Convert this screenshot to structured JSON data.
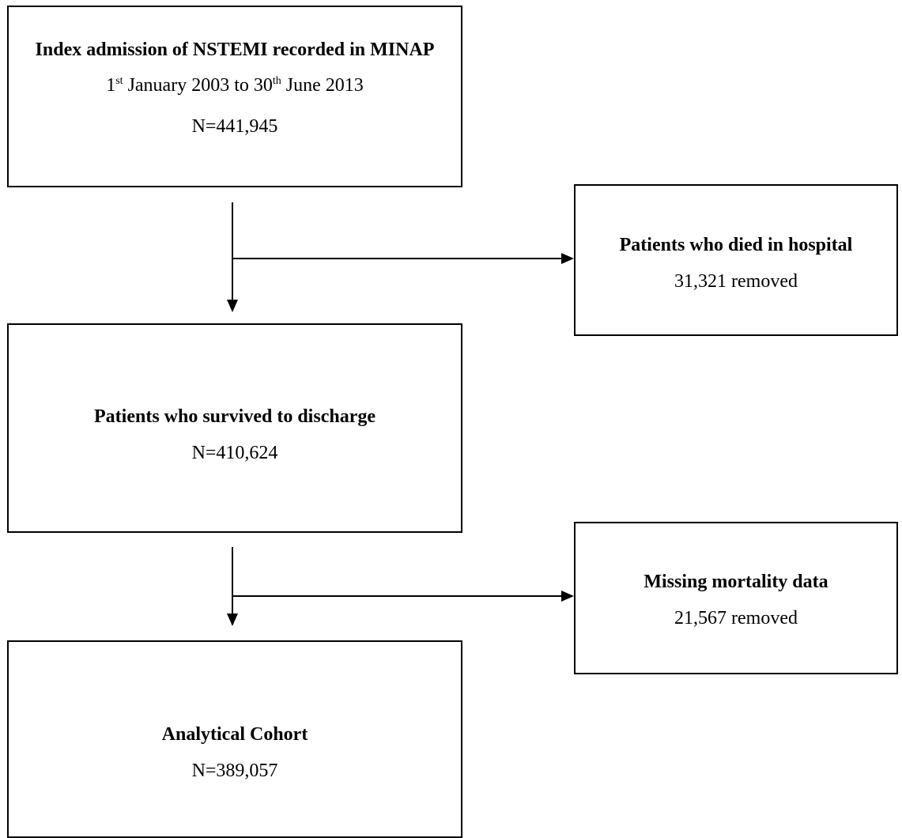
{
  "boxes": {
    "index_admission": {
      "title": "Index admission of NSTEMI recorded in MINAP",
      "date_part1": "1",
      "date_sup1": "st",
      "date_part2": " January 2003 to 30",
      "date_sup2": "th",
      "date_part3": " June 2013",
      "count": "N=441,945"
    },
    "died_in_hospital": {
      "title": "Patients who died in hospital",
      "detail": "31,321 removed"
    },
    "survived_to_discharge": {
      "title": "Patients who survived to discharge",
      "count": "N=410,624"
    },
    "missing_mortality": {
      "title": "Missing mortality data",
      "detail": "21,567 removed"
    },
    "analytical_cohort": {
      "title": "Analytical Cohort",
      "count": "N=389,057"
    }
  },
  "colors": {
    "line": "#000000",
    "background": "#ffffff"
  }
}
